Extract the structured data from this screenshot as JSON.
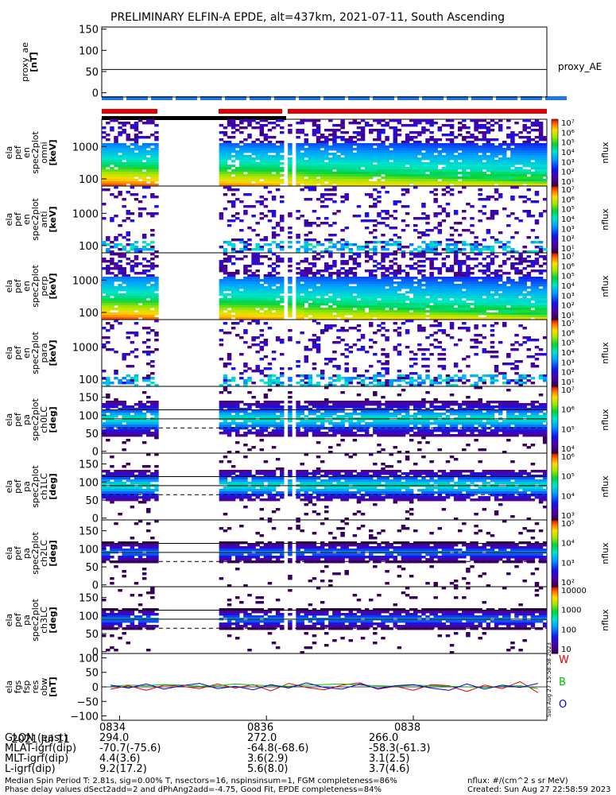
{
  "title": "PRELIMINARY ELFIN-A EPDE, alt=437km, 2021-07-11, South Ascending",
  "side_stamp": "Sun Aug 27 15:58:58 2023",
  "colors": {
    "spin_red": "#e00000",
    "spin_blue": "#1e78e6",
    "trace_red": "#e00000",
    "trace_green": "#00c000",
    "trace_blue": "#0000e0"
  },
  "chart_data": [
    {
      "type": "line",
      "title": "",
      "ylabel_lines": [
        "proxy_ae",
        "[nT]"
      ],
      "ylim": [
        -10,
        155
      ],
      "yticks": [
        "150",
        "100",
        "50",
        "0"
      ],
      "legend": [
        "proxy_AE"
      ],
      "series": [
        {
          "name": "proxy_AE",
          "x": [
            0,
            1
          ],
          "y": [
            55,
            55
          ]
        }
      ]
    },
    {
      "type": "heatmap",
      "ylabel_lines": [
        "ela",
        "pef",
        "en",
        "spec2plot",
        "omni",
        "[keV]"
      ],
      "yscale": "log",
      "ylim": [
        60,
        7000
      ],
      "yticks": [
        "1000",
        "100"
      ],
      "colorbar_label": "nflux",
      "colorbar_ticks": [
        "10⁷",
        "10⁶",
        "10⁵",
        "10⁴",
        "10³",
        "10²",
        "10¹"
      ]
    },
    {
      "type": "heatmap",
      "ylabel_lines": [
        "ela",
        "pef",
        "en",
        "spec2plot",
        "anti",
        "[keV]"
      ],
      "yscale": "log",
      "ylim": [
        60,
        7000
      ],
      "yticks": [
        "1000",
        "100"
      ],
      "colorbar_label": "nflux",
      "colorbar_ticks": [
        "10⁷",
        "10⁶",
        "10⁵",
        "10⁴",
        "10³",
        "10²",
        "10¹"
      ]
    },
    {
      "type": "heatmap",
      "ylabel_lines": [
        "ela",
        "pef",
        "en",
        "spec2plot",
        "perp",
        "[keV]"
      ],
      "yscale": "log",
      "ylim": [
        60,
        7000
      ],
      "yticks": [
        "1000",
        "100"
      ],
      "colorbar_label": "nflux",
      "colorbar_ticks": [
        "10⁷",
        "10⁶",
        "10⁵",
        "10⁴",
        "10³",
        "10²",
        "10¹"
      ]
    },
    {
      "type": "heatmap",
      "ylabel_lines": [
        "ela",
        "pef",
        "en",
        "spec2plot",
        "para",
        "[keV]"
      ],
      "yscale": "log",
      "ylim": [
        60,
        7000
      ],
      "yticks": [
        "1000",
        "100"
      ],
      "colorbar_label": "nflux",
      "colorbar_ticks": [
        "10⁷",
        "10⁶",
        "10⁵",
        "10⁴",
        "10³",
        "10²",
        "10¹"
      ]
    },
    {
      "type": "heatmap",
      "ylabel_lines": [
        "ela",
        "pef",
        "pa",
        "spec2plot",
        "ch0LC",
        "[deg]"
      ],
      "ylim": [
        -5,
        180
      ],
      "yticks": [
        "150",
        "100",
        "50",
        "0"
      ],
      "colorbar_label": "nflux",
      "colorbar_ticks": [
        "10⁷",
        "10⁶",
        "10⁵",
        "10⁴"
      ]
    },
    {
      "type": "heatmap",
      "ylabel_lines": [
        "ela",
        "pef",
        "pa",
        "spec2plot",
        "ch1LC",
        "[deg]"
      ],
      "ylim": [
        -5,
        180
      ],
      "yticks": [
        "150",
        "100",
        "50",
        "0"
      ],
      "colorbar_label": "nflux",
      "colorbar_ticks": [
        "10⁶",
        "10⁵",
        "10⁴",
        "10³"
      ]
    },
    {
      "type": "heatmap",
      "ylabel_lines": [
        "ela",
        "pef",
        "pa",
        "spec2plot",
        "ch2LC",
        "[deg]"
      ],
      "ylim": [
        -5,
        180
      ],
      "yticks": [
        "150",
        "100",
        "50",
        "0"
      ],
      "colorbar_label": "nflux",
      "colorbar_ticks": [
        "10⁵",
        "10⁴",
        "10³",
        "10²"
      ]
    },
    {
      "type": "heatmap",
      "ylabel_lines": [
        "ela",
        "pef",
        "pa",
        "spec2plot",
        "ch3LC",
        "[deg]"
      ],
      "ylim": [
        -5,
        180
      ],
      "yticks": [
        "150",
        "100",
        "50",
        "0"
      ],
      "colorbar_label": "nflux",
      "colorbar_ticks": [
        "10000",
        "1000",
        "100",
        "10"
      ]
    },
    {
      "type": "line",
      "ylabel_lines": [
        "ela",
        "fgs",
        "fsp",
        "res",
        "obw",
        "[nT]"
      ],
      "ylim": [
        -115,
        115
      ],
      "yticks": [
        "100",
        "50",
        "0",
        "−50",
        "−100"
      ],
      "legend": [
        "W",
        "B",
        "O"
      ],
      "series": [
        {
          "name": "W",
          "x": [
            0.02,
            0.06,
            0.1,
            0.14,
            0.18,
            0.22,
            0.26,
            0.3,
            0.34,
            0.38,
            0.42,
            0.46,
            0.5,
            0.54,
            0.58,
            0.62,
            0.66,
            0.7,
            0.74,
            0.78,
            0.82,
            0.86,
            0.9,
            0.94,
            0.98
          ],
          "y": [
            -8,
            4,
            -12,
            6,
            2,
            -6,
            10,
            -4,
            8,
            -14,
            12,
            -2,
            -10,
            6,
            14,
            -8,
            2,
            -12,
            8,
            4,
            -16,
            6,
            -6,
            18,
            -20
          ]
        },
        {
          "name": "B",
          "x": [
            0.02,
            0.06,
            0.1,
            0.14,
            0.18,
            0.22,
            0.26,
            0.3,
            0.34,
            0.38,
            0.42,
            0.46,
            0.5,
            0.54,
            0.58,
            0.62,
            0.66,
            0.7,
            0.74,
            0.78,
            0.82,
            0.86,
            0.9,
            0.94,
            0.98
          ],
          "y": [
            2,
            6,
            4,
            8,
            6,
            2,
            4,
            10,
            6,
            4,
            2,
            6,
            8,
            10,
            6,
            4,
            2,
            6,
            4,
            2,
            0,
            -2,
            2,
            4,
            -6
          ]
        },
        {
          "name": "O",
          "x": [
            0.02,
            0.06,
            0.1,
            0.14,
            0.18,
            0.22,
            0.26,
            0.3,
            0.34,
            0.38,
            0.42,
            0.46,
            0.5,
            0.54,
            0.58,
            0.62,
            0.66,
            0.7,
            0.74,
            0.78,
            0.82,
            0.86,
            0.9,
            0.94,
            0.98
          ],
          "y": [
            6,
            -4,
            10,
            -8,
            4,
            12,
            -6,
            2,
            -10,
            8,
            -4,
            14,
            -2,
            -8,
            10,
            -6,
            4,
            8,
            -4,
            -12,
            10,
            -8,
            6,
            -2,
            12
          ]
        }
      ]
    }
  ],
  "x_axis": {
    "date_label": "2021 Jul 11",
    "tick_labels": [
      "0834",
      "0836",
      "0838"
    ]
  },
  "ephemeris": {
    "rows": [
      {
        "label": "GLON (east)",
        "values": [
          "294.0",
          "272.0",
          "266.0"
        ]
      },
      {
        "label": "MLAT-igrf(dip)",
        "values": [
          "-70.7(-75.6)",
          "-64.8(-68.6)",
          "-58.3(-61.3)"
        ]
      },
      {
        "label": "MLT-igrf(dip)",
        "values": [
          "4.4(3.6)",
          "3.6(2.9)",
          "3.1(2.5)"
        ]
      },
      {
        "label": "L-igrf(dip)",
        "values": [
          "9.2(17.2)",
          "5.6(8.0)",
          "3.7(4.6)"
        ]
      }
    ]
  },
  "footer": {
    "left1": "Median Spin Period T: 2.81s, sig=0.00% T, nsectors=16, nspinsinsum=1, FGM completeness=86%",
    "left2": "Phase delay values dSect2add=2 and dPhAng2add=-4.75, Good Fit, EPDE completeness=84%",
    "right1": "nflux: #/(cm^2 s sr MeV)",
    "right2": "Created: Sun Aug 27 22:58:59 2023"
  }
}
